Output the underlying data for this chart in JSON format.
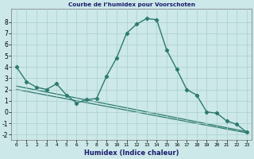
{
  "title": "Courbe de l’humidex pour Voorschoten",
  "xlabel": "Humidex (Indice chaleur)",
  "background_color": "#cce8e8",
  "grid_color": "#aacfcf",
  "line_color": "#2d7a6e",
  "xlim": [
    -0.5,
    23.5
  ],
  "ylim": [
    -2.5,
    9.2
  ],
  "xticks": [
    0,
    1,
    2,
    3,
    4,
    5,
    6,
    7,
    8,
    9,
    10,
    11,
    12,
    13,
    14,
    15,
    16,
    17,
    18,
    19,
    20,
    21,
    22,
    23
  ],
  "yticks": [
    -2,
    -1,
    0,
    1,
    2,
    3,
    4,
    5,
    6,
    7,
    8
  ],
  "line1_x": [
    0,
    1,
    2,
    3,
    4,
    5,
    6,
    7,
    8,
    9,
    10,
    11,
    12,
    13,
    14,
    15,
    16,
    17,
    18,
    19,
    20,
    21,
    22,
    23
  ],
  "line1_y": [
    4.0,
    2.7,
    2.2,
    2.0,
    2.5,
    1.5,
    0.8,
    1.1,
    1.2,
    3.2,
    4.8,
    7.0,
    7.8,
    8.3,
    8.2,
    5.5,
    3.8,
    2.0,
    1.5,
    0.0,
    -0.1,
    -0.8,
    -1.1,
    -1.8
  ],
  "trend1_x": [
    0,
    23
  ],
  "trend1_y": [
    2.3,
    -1.75
  ],
  "trend2_x": [
    0,
    23
  ],
  "trend2_y": [
    2.0,
    -1.85
  ]
}
